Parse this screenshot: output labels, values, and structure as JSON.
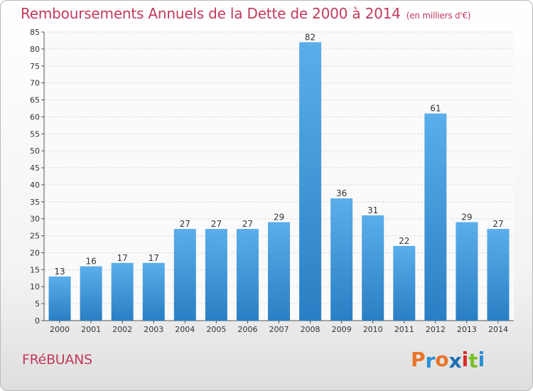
{
  "header": {
    "title": "Remboursements Annuels de la Dette de 2000 à 2014",
    "subtitle": "(en milliers d'€)"
  },
  "footer": {
    "commune": "FRéBUANS",
    "logo_letters": [
      "P",
      "r",
      "o",
      "x",
      "i",
      "t",
      "i"
    ]
  },
  "colors": {
    "title": "#c23a5a",
    "bar_top": "#5aaeea",
    "bar_bottom": "#2a7fc4",
    "logo": [
      "#e8742a",
      "#2a8fd4",
      "#e8742a",
      "#1a6fb4",
      "#d82a2a",
      "#7abf2a",
      "#2a8fd4"
    ]
  },
  "chart_data": {
    "type": "bar",
    "categories": [
      "2000",
      "2001",
      "2002",
      "2003",
      "2004",
      "2005",
      "2006",
      "2007",
      "2008",
      "2009",
      "2010",
      "2011",
      "2012",
      "2013",
      "2014"
    ],
    "values": [
      13,
      16,
      17,
      17,
      27,
      27,
      27,
      29,
      82,
      36,
      31,
      22,
      61,
      29,
      27
    ],
    "title": "Remboursements Annuels de la Dette de 2000 à 2014",
    "subtitle": "(en milliers d'€)",
    "ylim": [
      0,
      85
    ],
    "yticks": [
      0,
      5,
      10,
      15,
      20,
      25,
      30,
      35,
      40,
      45,
      50,
      55,
      60,
      65,
      70,
      75,
      80,
      85
    ],
    "grid": true,
    "legend": "none"
  }
}
